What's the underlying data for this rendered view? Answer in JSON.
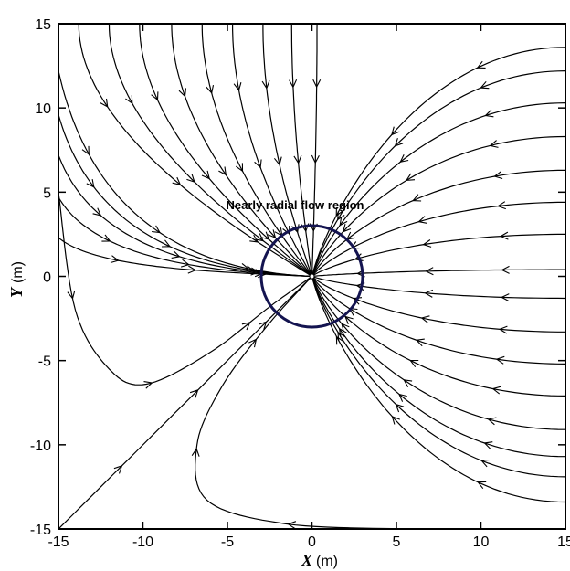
{
  "chart_data": {
    "type": "streamline",
    "title": "",
    "xlabel": {
      "var": "X",
      "unit": "(m)"
    },
    "ylabel": {
      "var": "Y",
      "unit": "(m)"
    },
    "xlim": [
      -15,
      15
    ],
    "ylim": [
      -15,
      15
    ],
    "xticks": [
      "-15",
      "-10",
      "-5",
      "0",
      "5",
      "10",
      "15"
    ],
    "yticks": [
      "15",
      "10",
      "5",
      "0",
      "-5",
      "-10",
      "-15"
    ],
    "grid": false,
    "sink": {
      "x": 0,
      "y": 0
    },
    "colors": {
      "line": "#000000",
      "circle": "#141450"
    },
    "annotation": {
      "text": "Nearly radial flow region",
      "x": -4,
      "y": 4
    },
    "region_circle": {
      "center": [
        0,
        0
      ],
      "radius": 3
    },
    "streamlines": {
      "from_top": [
        -13.8,
        -12,
        -10.2,
        -8.3,
        -6.5,
        -4.7,
        -2.9,
        -1.2,
        0.3
      ],
      "from_left": [
        12.2,
        9.6,
        7.2,
        4.7,
        2.3
      ],
      "from_right": [
        13.6,
        12.2,
        10.3,
        8.3,
        6.3,
        4.4,
        2.5,
        0.4,
        -1.3,
        -3.3,
        -5.2,
        -7.1,
        -9.1,
        -10.7,
        -11.9,
        -13.4
      ],
      "bottom_left": [
        {
          "path": [
            [
              -15,
              5
            ],
            [
              -14,
              -2
            ],
            [
              -12,
              -5.5
            ],
            [
              -9.8,
              -6.4
            ],
            [
              -6,
              -4.5
            ],
            [
              -2.5,
              -1.8
            ],
            [
              0,
              0
            ]
          ]
        },
        {
          "path": [
            [
              -15,
              -15
            ],
            [
              -7.5,
              -7.5
            ],
            [
              0,
              0
            ]
          ]
        },
        {
          "path": [
            [
              5.5,
              -15
            ],
            [
              -1.5,
              -14.7
            ],
            [
              -6.2,
              -13.3
            ],
            [
              -6.8,
              -10
            ],
            [
              -5.3,
              -6.5
            ],
            [
              -2.7,
              -3
            ],
            [
              0,
              0
            ]
          ]
        }
      ]
    }
  }
}
